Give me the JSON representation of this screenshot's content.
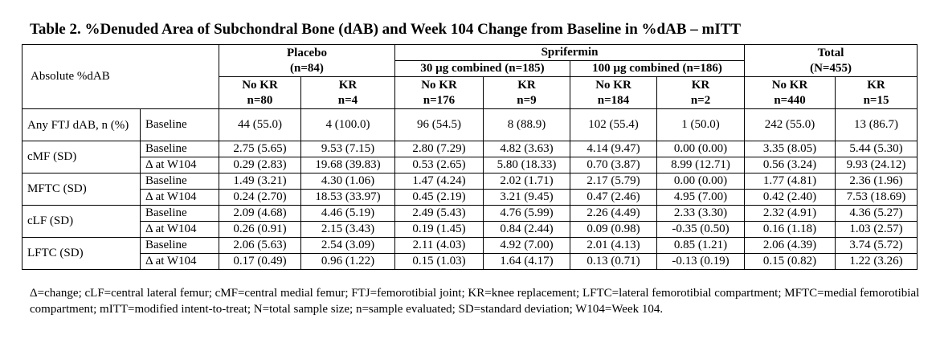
{
  "title": "Table 2. %Denuded Area of Subchondral Bone (dAB) and Week 104 Change from Baseline in %dAB – mITT",
  "header": {
    "stub": "Absolute %dAB",
    "placebo": {
      "label": "Placebo",
      "n": "(n=84)"
    },
    "sprifermin": {
      "label": "Sprifermin"
    },
    "g30": "30 µg combined (n=185)",
    "g100": "100 µg combined (n=186)",
    "total": {
      "label": "Total",
      "n": "(N=455)"
    },
    "subcols": [
      {
        "label": "No KR",
        "n": "n=80"
      },
      {
        "label": "KR",
        "n": "n=4"
      },
      {
        "label": "No KR",
        "n": "n=176"
      },
      {
        "label": "KR",
        "n": "n=9"
      },
      {
        "label": "No KR",
        "n": "n=184"
      },
      {
        "label": "KR",
        "n": "n=2"
      },
      {
        "label": "No KR",
        "n": "n=440"
      },
      {
        "label": "KR",
        "n": "n=15"
      }
    ]
  },
  "rows": [
    {
      "group": "Any FTJ dAB, n (%)",
      "sub": "Baseline",
      "values": [
        "44 (55.0)",
        "4 (100.0)",
        "96 (54.5)",
        "8 (88.9)",
        "102 (55.4)",
        "1 (50.0)",
        "242 (55.0)",
        "13 (86.7)"
      ]
    },
    {
      "group": "cMF (SD)",
      "sub": "Baseline",
      "values": [
        "2.75 (5.65)",
        "9.53 (7.15)",
        "2.80 (7.29)",
        "4.82 (3.63)",
        "4.14 (9.47)",
        "0.00 (0.00)",
        "3.35 (8.05)",
        "5.44 (5.30)"
      ]
    },
    {
      "group": "",
      "sub": "Δ at W104",
      "values": [
        "0.29 (2.83)",
        "19.68 (39.83)",
        "0.53 (2.65)",
        "5.80 (18.33)",
        "0.70 (3.87)",
        "8.99 (12.71)",
        "0.56 (3.24)",
        "9.93 (24.12)"
      ]
    },
    {
      "group": "MFTC (SD)",
      "sub": "Baseline",
      "values": [
        "1.49 (3.21)",
        "4.30 (1.06)",
        "1.47 (4.24)",
        "2.02 (1.71)",
        "2.17 (5.79)",
        "0.00 (0.00)",
        "1.77 (4.81)",
        "2.36 (1.96)"
      ]
    },
    {
      "group": "",
      "sub": "Δ at W104",
      "values": [
        "0.24 (2.70)",
        "18.53 (33.97)",
        "0.45 (2.19)",
        "3.21 (9.45)",
        "0.47 (2.46)",
        "4.95 (7.00)",
        "0.42 (2.40)",
        "7.53 (18.69)"
      ]
    },
    {
      "group": "cLF (SD)",
      "sub": "Baseline",
      "values": [
        "2.09 (4.68)",
        "4.46 (5.19)",
        "2.49 (5.43)",
        "4.76 (5.99)",
        "2.26 (4.49)",
        "2.33 (3.30)",
        "2.32 (4.91)",
        "4.36 (5.27)"
      ]
    },
    {
      "group": "",
      "sub": "Δ at W104",
      "values": [
        "0.26 (0.91)",
        "2.15 (3.43)",
        "0.19 (1.45)",
        "0.84 (2.44)",
        "0.09 (0.98)",
        "-0.35 (0.50)",
        "0.16 (1.18)",
        "1.03 (2.57)"
      ]
    },
    {
      "group": "LFTC (SD)",
      "sub": "Baseline",
      "values": [
        "2.06 (5.63)",
        "2.54 (3.09)",
        "2.11 (4.03)",
        "4.92 (7.00)",
        "2.01 (4.13)",
        "0.85 (1.21)",
        "2.06 (4.39)",
        "3.74 (5.72)"
      ]
    },
    {
      "group": "",
      "sub": "Δ at W104",
      "values": [
        "0.17 (0.49)",
        "0.96 (1.22)",
        "0.15 (1.03)",
        "1.64 (4.17)",
        "0.13 (0.71)",
        "-0.13 (0.19)",
        "0.15 (0.82)",
        "1.22 (3.26)"
      ]
    }
  ],
  "footnote": "Δ=change; cLF=central lateral femur; cMF=central medial femur; FTJ=femorotibial joint; KR=knee replacement; LFTC=lateral femorotibial compartment; MFTC=medial femorotibial compartment; mITT=modified intent-to-treat; N=total sample size; n=sample evaluated; SD=standard deviation; W104=Week 104."
}
